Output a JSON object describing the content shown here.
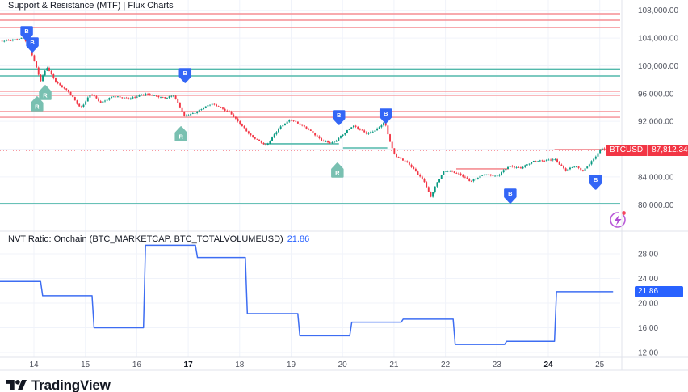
{
  "legends": {
    "main": "Support & Resistance (MTF) | Flux Charts",
    "nvt_title": "NVT Ratio: Onchain (BTC_MARKETCAP, BTC_TOTALVOLUMEUSD)",
    "nvt_value": "21.86"
  },
  "price_tag": {
    "symbol": "BTCUSD",
    "price": "87,812.34",
    "bg": "#F23645"
  },
  "nvt_tag": {
    "value": "21.86",
    "bg": "#2962FF"
  },
  "footer": {
    "brand": "TradingView"
  },
  "colors": {
    "grid": "#F0F3FA",
    "border": "#E0E3EB",
    "axis_text": "#50535E",
    "axis_text_bold": "#131722",
    "legend_text": "#131722",
    "flux_logo_purple": "#B24BD4",
    "flux_logo_dot": "#F6465D"
  },
  "chart_data": [
    {
      "type": "candlestick",
      "symbol": "BTCUSD",
      "last_price": 87812.34,
      "up_color": "#089981",
      "down_color": "#F23645",
      "x_axis": {
        "ticks": [
          {
            "label": "14",
            "day": 14,
            "bold": false
          },
          {
            "label": "15",
            "day": 15,
            "bold": false
          },
          {
            "label": "16",
            "day": 16,
            "bold": false
          },
          {
            "label": "17",
            "day": 17,
            "bold": true
          },
          {
            "label": "18",
            "day": 18,
            "bold": false
          },
          {
            "label": "19",
            "day": 19,
            "bold": false
          },
          {
            "label": "20",
            "day": 20,
            "bold": false
          },
          {
            "label": "21",
            "day": 21,
            "bold": false
          },
          {
            "label": "22",
            "day": 22,
            "bold": false
          },
          {
            "label": "23",
            "day": 23,
            "bold": false
          },
          {
            "label": "24",
            "day": 24,
            "bold": true
          },
          {
            "label": "25",
            "day": 25,
            "bold": false
          }
        ]
      },
      "y_axis": {
        "labeled_ticks": [
          108000,
          104000,
          100000,
          96000,
          92000,
          84000,
          80000
        ],
        "grid_ticks": [
          108000,
          104000,
          100000,
          96000,
          92000,
          88000,
          84000,
          80000
        ]
      },
      "resistance_lines": {
        "color": "#F58E93",
        "prices": [
          107500,
          106570,
          105520,
          96330,
          95750,
          93420,
          92600
        ]
      },
      "support_lines": {
        "color": "#52B9AB",
        "prices": [
          99530,
          98540,
          80160
        ]
      },
      "segments": [
        {
          "price": 88770,
          "day_from": 18.47,
          "day_to": 19.93,
          "kind": "support"
        },
        {
          "price": 88180,
          "day_from": 20.01,
          "day_to": 20.87,
          "kind": "support"
        },
        {
          "price": 85160,
          "day_from": 22.21,
          "day_to": 23.23,
          "kind": "resistance"
        },
        {
          "price": 87950,
          "day_from": 24.12,
          "day_to": 25.18,
          "kind": "resistance"
        }
      ],
      "price_line": {
        "price": 87812.34,
        "color": "#F23645"
      },
      "signals": {
        "buy": {
          "label": "B",
          "color": "#3366F6",
          "points": [
            {
              "day": 13.86,
              "price": 104590
            },
            {
              "day": 13.97,
              "price": 102960
            },
            {
              "day": 16.94,
              "price": 98540
            },
            {
              "day": 19.93,
              "price": 92490
            },
            {
              "day": 20.84,
              "price": 92720
            },
            {
              "day": 23.26,
              "price": 81200
            },
            {
              "day": 24.92,
              "price": 83180
            }
          ]
        },
        "retest": {
          "label": "R",
          "color": "#79C0B1",
          "points": [
            {
              "day": 14.06,
              "price": 94580
            },
            {
              "day": 14.22,
              "price": 96210
            },
            {
              "day": 16.86,
              "price": 90280
            },
            {
              "day": 19.9,
              "price": 85040
            }
          ]
        }
      },
      "price_path": [
        [
          13.34,
          103600
        ],
        [
          13.58,
          103800
        ],
        [
          13.81,
          104100
        ],
        [
          13.94,
          102200
        ],
        [
          14.13,
          97900
        ],
        [
          14.25,
          99900
        ],
        [
          14.44,
          97600
        ],
        [
          14.68,
          96300
        ],
        [
          14.91,
          93900
        ],
        [
          15.11,
          96100
        ],
        [
          15.3,
          94700
        ],
        [
          15.54,
          95700
        ],
        [
          15.85,
          95300
        ],
        [
          16.17,
          96000
        ],
        [
          16.56,
          95400
        ],
        [
          16.72,
          95800
        ],
        [
          16.92,
          92800
        ],
        [
          17.11,
          93200
        ],
        [
          17.45,
          94600
        ],
        [
          17.81,
          93300
        ],
        [
          18.21,
          90000
        ],
        [
          18.52,
          88500
        ],
        [
          18.76,
          91000
        ],
        [
          18.99,
          92300
        ],
        [
          19.31,
          91000
        ],
        [
          19.62,
          89100
        ],
        [
          19.82,
          88900
        ],
        [
          20.2,
          91400
        ],
        [
          20.48,
          90200
        ],
        [
          20.66,
          90800
        ],
        [
          20.82,
          91900
        ],
        [
          20.95,
          88300
        ],
        [
          21.03,
          87000
        ],
        [
          21.27,
          86000
        ],
        [
          21.44,
          84600
        ],
        [
          21.6,
          83200
        ],
        [
          21.71,
          81000
        ],
        [
          21.8,
          82600
        ],
        [
          21.95,
          84700
        ],
        [
          22.05,
          84900
        ],
        [
          22.29,
          84300
        ],
        [
          22.49,
          83300
        ],
        [
          22.76,
          84400
        ],
        [
          22.99,
          84000
        ],
        [
          23.23,
          85500
        ],
        [
          23.46,
          85200
        ],
        [
          23.7,
          86200
        ],
        [
          23.94,
          86300
        ],
        [
          24.12,
          86500
        ],
        [
          24.33,
          84900
        ],
        [
          24.52,
          85500
        ],
        [
          24.68,
          84800
        ],
        [
          24.88,
          86500
        ],
        [
          25.04,
          88100
        ],
        [
          25.19,
          87812.34
        ]
      ]
    },
    {
      "type": "step_line",
      "title": "NVT Ratio",
      "line_color": "#3D6DF2",
      "current_value": 21.86,
      "y_axis": {
        "labeled_ticks": [
          28,
          24,
          20,
          16,
          12
        ]
      },
      "steps": [
        {
          "day_from": 13.34,
          "day_to": 14.13,
          "value": 23.5
        },
        {
          "day_from": 14.13,
          "day_to": 15.13,
          "value": 21.2
        },
        {
          "day_from": 15.13,
          "day_to": 16.13,
          "value": 16.0
        },
        {
          "day_from": 16.13,
          "day_to": 17.14,
          "value": 29.4
        },
        {
          "day_from": 17.14,
          "day_to": 18.11,
          "value": 27.4
        },
        {
          "day_from": 18.11,
          "day_to": 19.13,
          "value": 18.3
        },
        {
          "day_from": 19.13,
          "day_to": 20.14,
          "value": 14.7
        },
        {
          "day_from": 20.14,
          "day_to": 21.14,
          "value": 16.9
        },
        {
          "day_from": 21.14,
          "day_to": 22.15,
          "value": 17.4
        },
        {
          "day_from": 22.15,
          "day_to": 23.15,
          "value": 13.3
        },
        {
          "day_from": 23.15,
          "day_to": 24.12,
          "value": 13.8
        },
        {
          "day_from": 24.12,
          "day_to": 25.25,
          "value": 21.86
        }
      ]
    }
  ]
}
